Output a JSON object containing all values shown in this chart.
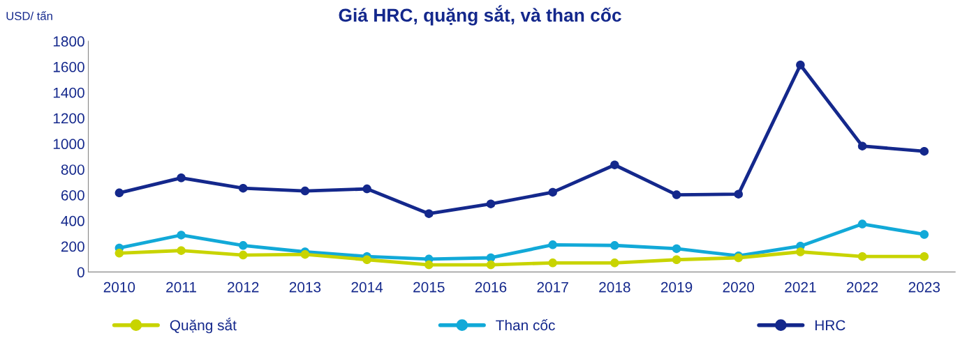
{
  "chart_data": {
    "type": "line",
    "title": "Giá HRC, quặng sắt, và than cốc",
    "ylabel": "USD/ tấn",
    "categories": [
      "2010",
      "2011",
      "2012",
      "2013",
      "2014",
      "2015",
      "2016",
      "2017",
      "2018",
      "2019",
      "2020",
      "2021",
      "2022",
      "2023"
    ],
    "series": [
      {
        "name": "Quặng sắt",
        "color": "#c8d400",
        "values": [
          147,
          167,
          132,
          137,
          96,
          56,
          56,
          71,
          71,
          96,
          111,
          157,
          121,
          121
        ]
      },
      {
        "name": "Than cốc",
        "color": "#12a9d8",
        "values": [
          187,
          288,
          207,
          157,
          121,
          101,
          111,
          212,
          207,
          182,
          126,
          202,
          374,
          293
        ]
      },
      {
        "name": "HRC",
        "color": "#14288c",
        "values": [
          617,
          734,
          653,
          632,
          648,
          455,
          531,
          622,
          835,
          602,
          607,
          1614,
          982,
          941
        ]
      }
    ],
    "ylim": [
      0,
      1800
    ],
    "yticks": [
      0,
      200,
      400,
      600,
      800,
      1000,
      1200,
      1400,
      1600,
      1800
    ],
    "grid": false,
    "legend": "bottom",
    "marker": "circle",
    "line_style": "solid"
  }
}
